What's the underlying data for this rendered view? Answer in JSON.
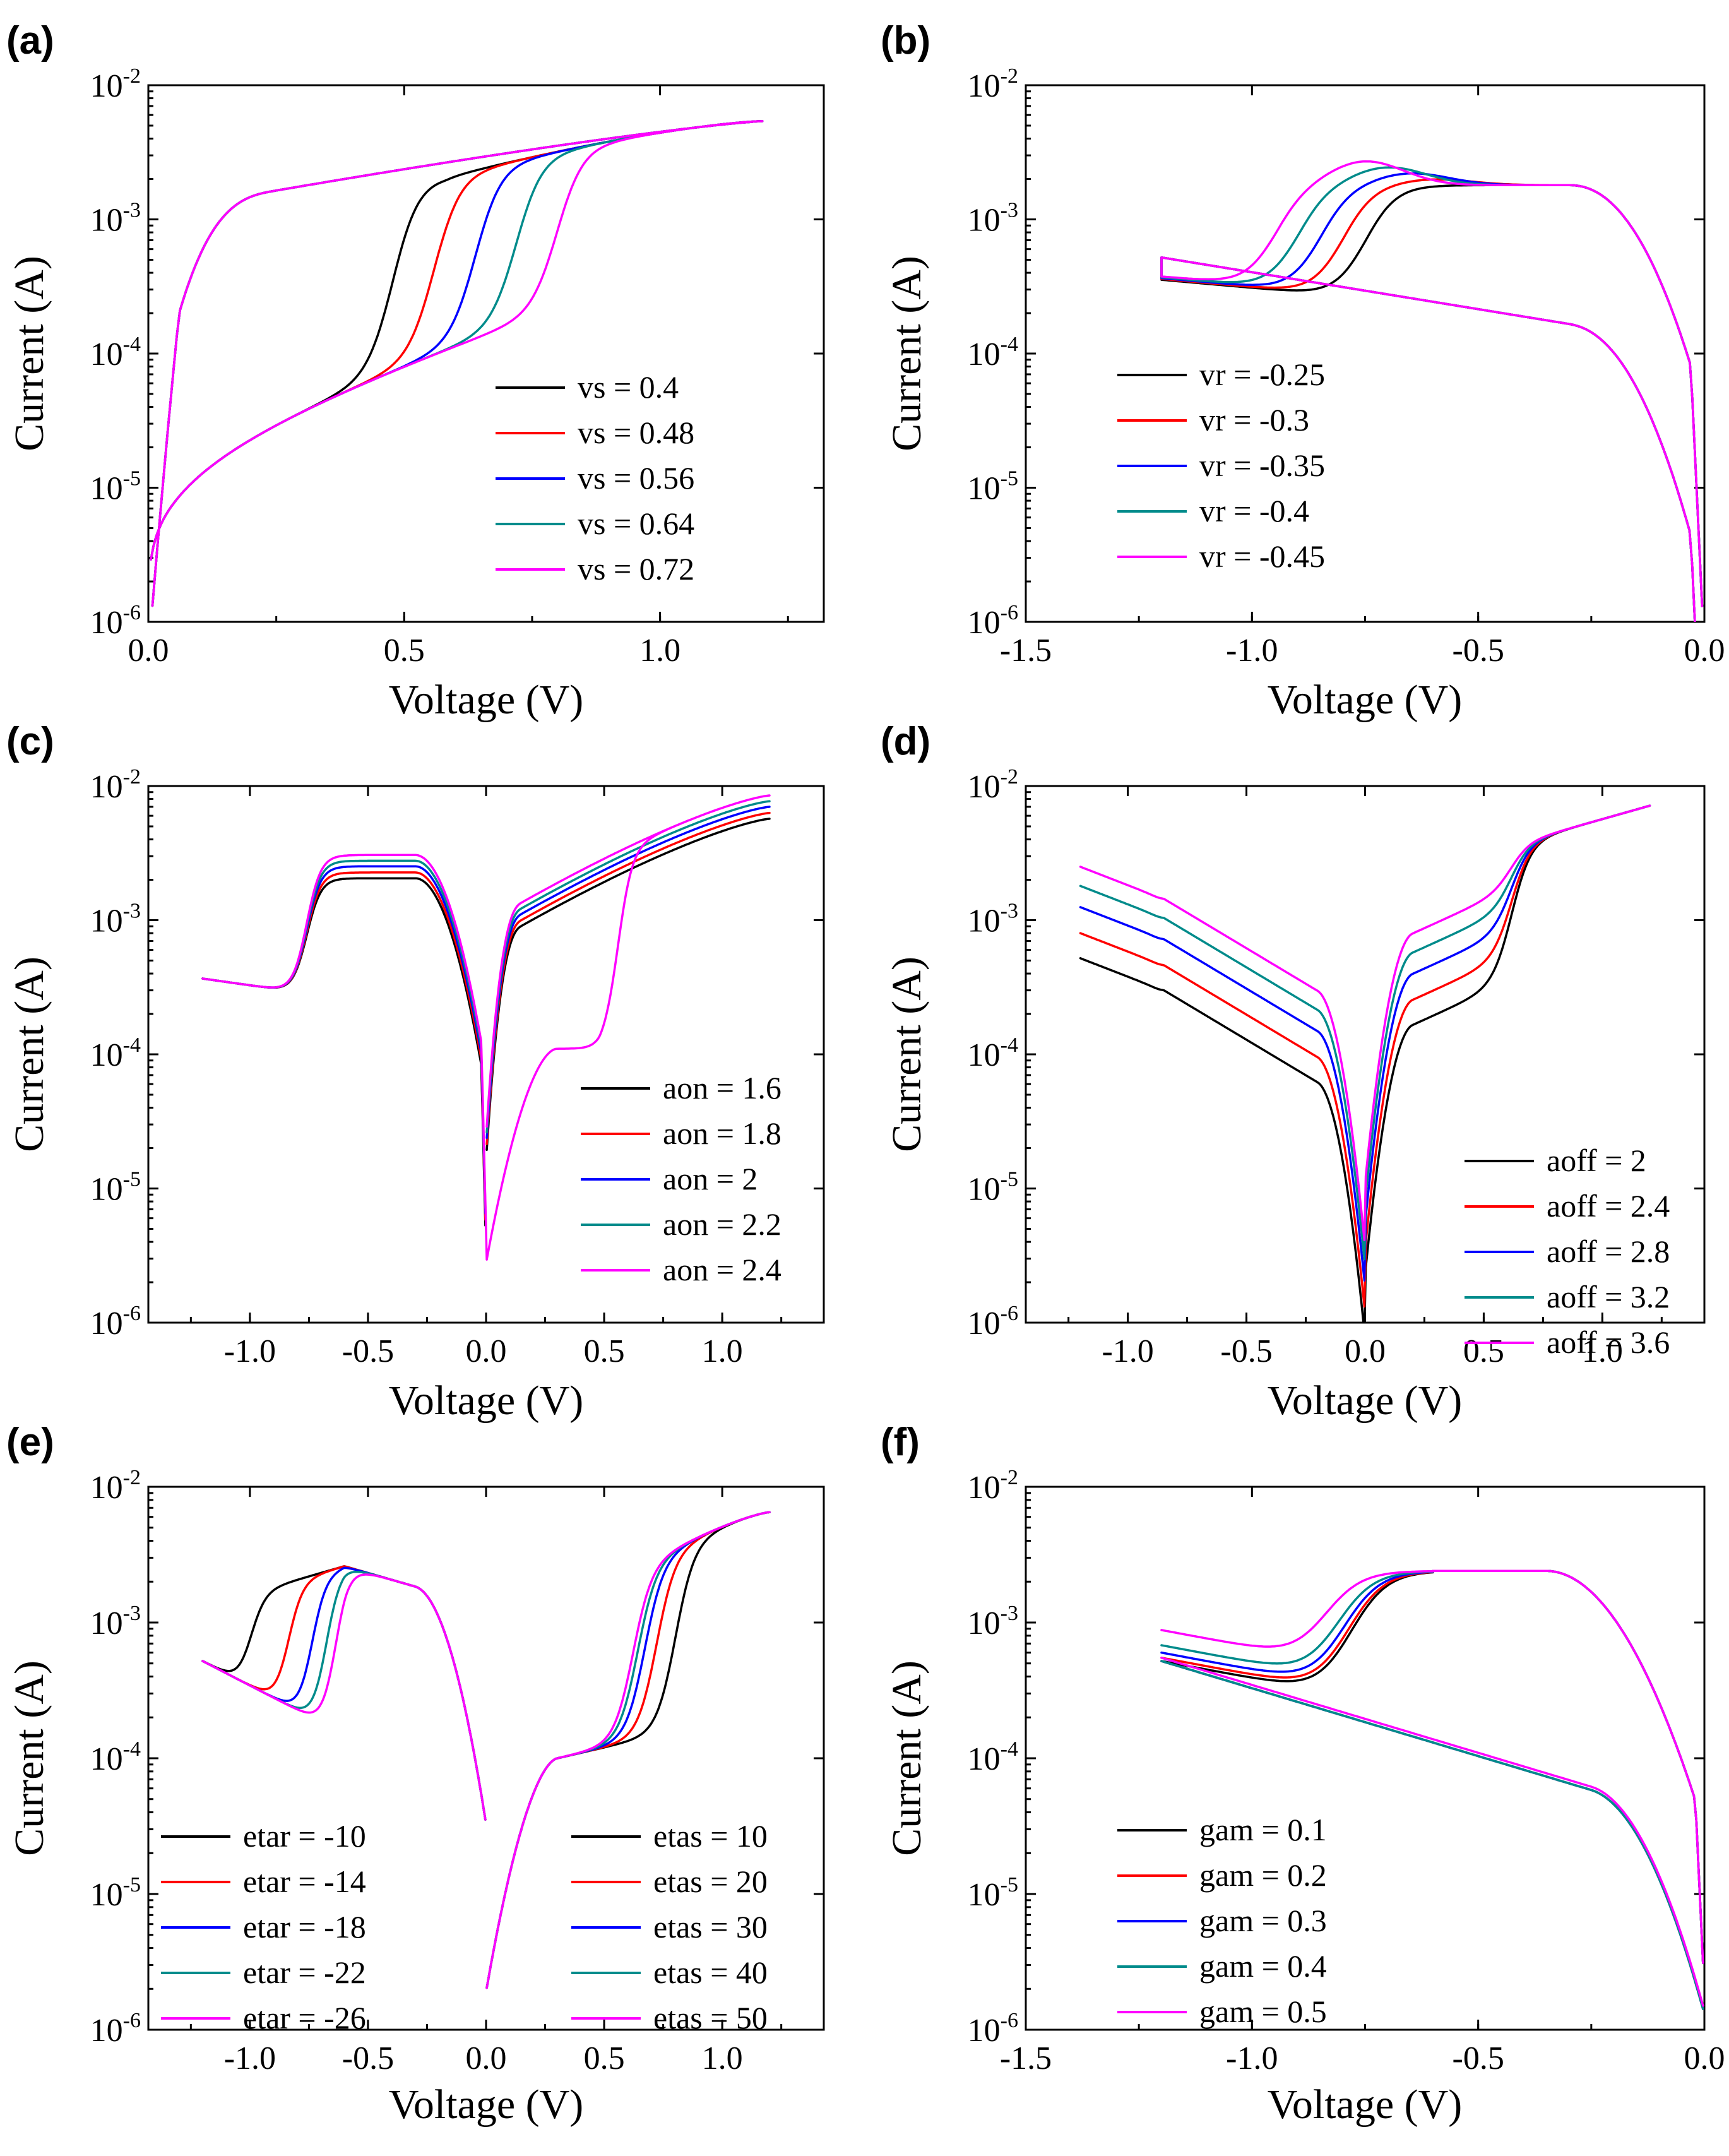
{
  "figure": {
    "panel_letters": [
      "(a)",
      "(b)",
      "(c)",
      "(d)",
      "(e)",
      "(f)"
    ]
  },
  "chart_data": [
    {
      "panel": "(a)",
      "type": "line",
      "xlabel": "Voltage (V)",
      "ylabel": "Current (A)",
      "xlim": [
        0.0,
        1.32
      ],
      "ylim_log10": [
        -6,
        -2
      ],
      "yscale": "log",
      "xticks": [
        "0.0",
        "0.5",
        "1.0"
      ],
      "xtick_values": [
        0,
        0.5,
        1.0
      ],
      "yticks": [
        {
          "base": "10",
          "exp": "-6"
        },
        {
          "base": "10",
          "exp": "-5"
        },
        {
          "base": "10",
          "exp": "-4"
        },
        {
          "base": "10",
          "exp": "-3"
        },
        {
          "base": "10",
          "exp": "-2"
        }
      ],
      "legend_position": "bottom-right",
      "param": "vs",
      "series": [
        {
          "name": "vs = 0.4",
          "color": "#000000",
          "switch_v": 0.4
        },
        {
          "name": "vs = 0.48",
          "color": "#ff0000",
          "switch_v": 0.48
        },
        {
          "name": "vs = 0.56",
          "color": "#0000ff",
          "switch_v": 0.56
        },
        {
          "name": "vs = 0.64",
          "color": "#008b8b",
          "switch_v": 0.64
        },
        {
          "name": "vs = 0.72",
          "color": "#ff00ff",
          "switch_v": 0.72
        }
      ]
    },
    {
      "panel": "(b)",
      "type": "line",
      "xlabel": "Voltage (V)",
      "ylabel": "Current (A)",
      "xlim": [
        -1.5,
        0.0
      ],
      "ylim_log10": [
        -6,
        -2
      ],
      "yscale": "log",
      "xticks": [
        "-1.5",
        "-1.0",
        "-0.5",
        "0.0"
      ],
      "xtick_values": [
        -1.5,
        -1.0,
        -0.5,
        0.0
      ],
      "yticks": [
        {
          "base": "10",
          "exp": "-6"
        },
        {
          "base": "10",
          "exp": "-5"
        },
        {
          "base": "10",
          "exp": "-4"
        },
        {
          "base": "10",
          "exp": "-3"
        },
        {
          "base": "10",
          "exp": "-2"
        }
      ],
      "legend_position": "bottom-left",
      "param": "vr",
      "series": [
        {
          "name": "vr = -0.25",
          "color": "#000000",
          "switch_v": -0.75
        },
        {
          "name": "vr = -0.3",
          "color": "#ff0000",
          "switch_v": -0.8
        },
        {
          "name": "vr = -0.35",
          "color": "#0000ff",
          "switch_v": -0.85
        },
        {
          "name": "vr = -0.4",
          "color": "#008b8b",
          "switch_v": -0.9
        },
        {
          "name": "vr = -0.45",
          "color": "#ff00ff",
          "switch_v": -0.95
        }
      ]
    },
    {
      "panel": "(c)",
      "type": "line",
      "xlabel": "Voltage (V)",
      "ylabel": "Current (A)",
      "xlim": [
        -1.43,
        1.43
      ],
      "ylim_log10": [
        -6,
        -2
      ],
      "yscale": "log",
      "xticks": [
        "-1.0",
        "-0.5",
        "0.0",
        "0.5",
        "1.0"
      ],
      "xtick_values": [
        -1.0,
        -0.5,
        0.0,
        0.5,
        1.0
      ],
      "yticks": [
        {
          "base": "10",
          "exp": "-6"
        },
        {
          "base": "10",
          "exp": "-5"
        },
        {
          "base": "10",
          "exp": "-4"
        },
        {
          "base": "10",
          "exp": "-3"
        },
        {
          "base": "10",
          "exp": "-2"
        }
      ],
      "legend_position": "bottom-right",
      "param": "aon",
      "series": [
        {
          "name": "aon = 1.6",
          "color": "#000000",
          "on_max": 0.0057
        },
        {
          "name": "aon = 1.8",
          "color": "#ff0000",
          "on_max": 0.0063
        },
        {
          "name": "aon = 2",
          "color": "#0000ff",
          "on_max": 0.007
        },
        {
          "name": "aon = 2.2",
          "color": "#008b8b",
          "on_max": 0.0077
        },
        {
          "name": "aon = 2.4",
          "color": "#ff00ff",
          "on_max": 0.0085
        }
      ]
    },
    {
      "panel": "(d)",
      "type": "line",
      "xlabel": "Voltage (V)",
      "ylabel": "Current (A)",
      "xlim": [
        -1.43,
        1.43
      ],
      "ylim_log10": [
        -6,
        -2
      ],
      "yscale": "log",
      "xticks": [
        "-1.0",
        "-0.5",
        "0.0",
        "0.5",
        "1.0"
      ],
      "xtick_values": [
        -1.0,
        -0.5,
        0.0,
        0.5,
        1.0
      ],
      "yticks": [
        {
          "base": "10",
          "exp": "-6"
        },
        {
          "base": "10",
          "exp": "-5"
        },
        {
          "base": "10",
          "exp": "-4"
        },
        {
          "base": "10",
          "exp": "-3"
        },
        {
          "base": "10",
          "exp": "-2"
        }
      ],
      "legend_position": "bottom-right",
      "param": "aoff",
      "series": [
        {
          "name": "aoff = 2",
          "color": "#000000",
          "off_start": 0.00052
        },
        {
          "name": "aoff = 2.4",
          "color": "#ff0000",
          "off_start": 0.0008
        },
        {
          "name": "aoff = 2.8",
          "color": "#0000ff",
          "off_start": 0.00125
        },
        {
          "name": "aoff = 3.2",
          "color": "#008b8b",
          "off_start": 0.0018
        },
        {
          "name": "aoff = 3.6",
          "color": "#ff00ff",
          "off_start": 0.0025
        }
      ]
    },
    {
      "panel": "(e)",
      "type": "line",
      "xlabel": "Voltage (V)",
      "ylabel": "Current (A)",
      "xlim": [
        -1.43,
        1.43
      ],
      "ylim_log10": [
        -6,
        -2
      ],
      "yscale": "log",
      "xticks": [
        "-1.0",
        "-0.5",
        "0.0",
        "0.5",
        "1.0"
      ],
      "xtick_values": [
        -1.0,
        -0.5,
        0.0,
        0.5,
        1.0
      ],
      "yticks": [
        {
          "base": "10",
          "exp": "-6"
        },
        {
          "base": "10",
          "exp": "-5"
        },
        {
          "base": "10",
          "exp": "-4"
        },
        {
          "base": "10",
          "exp": "-3"
        },
        {
          "base": "10",
          "exp": "-2"
        }
      ],
      "legend_position": "bottom-left and bottom-right",
      "param": "etar / etas",
      "series": [
        {
          "name": "etar = -10",
          "color": "#000000",
          "switch_v": -1.0
        },
        {
          "name": "etar = -14",
          "color": "#ff0000",
          "switch_v": -0.84
        },
        {
          "name": "etar = -18",
          "color": "#0000ff",
          "switch_v": -0.74
        },
        {
          "name": "etar = -22",
          "color": "#008b8b",
          "switch_v": -0.68
        },
        {
          "name": "etar = -26",
          "color": "#ff00ff",
          "switch_v": -0.64
        }
      ],
      "series_right": [
        {
          "name": "etas = 10",
          "color": "#000000",
          "switch_v": 0.8
        },
        {
          "name": "etas = 20",
          "color": "#ff0000",
          "switch_v": 0.72
        },
        {
          "name": "etas = 30",
          "color": "#0000ff",
          "switch_v": 0.67
        },
        {
          "name": "etas = 40",
          "color": "#008b8b",
          "switch_v": 0.64
        },
        {
          "name": "etas = 50",
          "color": "#ff00ff",
          "switch_v": 0.62
        }
      ]
    },
    {
      "panel": "(f)",
      "type": "line",
      "xlabel": "Voltage (V)",
      "ylabel": "Current (A)",
      "xlim": [
        -1.5,
        0.0
      ],
      "ylim_log10": [
        -6,
        -2
      ],
      "yscale": "log",
      "xticks": [
        "-1.5",
        "-1.0",
        "-0.5",
        "0.0"
      ],
      "xtick_values": [
        -1.5,
        -1.0,
        -0.5,
        0.0
      ],
      "yticks": [
        {
          "base": "10",
          "exp": "-6"
        },
        {
          "base": "10",
          "exp": "-5"
        },
        {
          "base": "10",
          "exp": "-4"
        },
        {
          "base": "10",
          "exp": "-3"
        },
        {
          "base": "10",
          "exp": "-2"
        }
      ],
      "legend_position": "bottom-left",
      "param": "gam",
      "series": [
        {
          "name": "gam = 0.1",
          "color": "#000000",
          "start_i": 0.00052
        },
        {
          "name": "gam = 0.2",
          "color": "#ff0000",
          "start_i": 0.00055
        },
        {
          "name": "gam = 0.3",
          "color": "#0000ff",
          "start_i": 0.0006
        },
        {
          "name": "gam = 0.4",
          "color": "#008b8b",
          "start_i": 0.00068
        },
        {
          "name": "gam = 0.5",
          "color": "#ff00ff",
          "start_i": 0.00088
        }
      ]
    }
  ]
}
